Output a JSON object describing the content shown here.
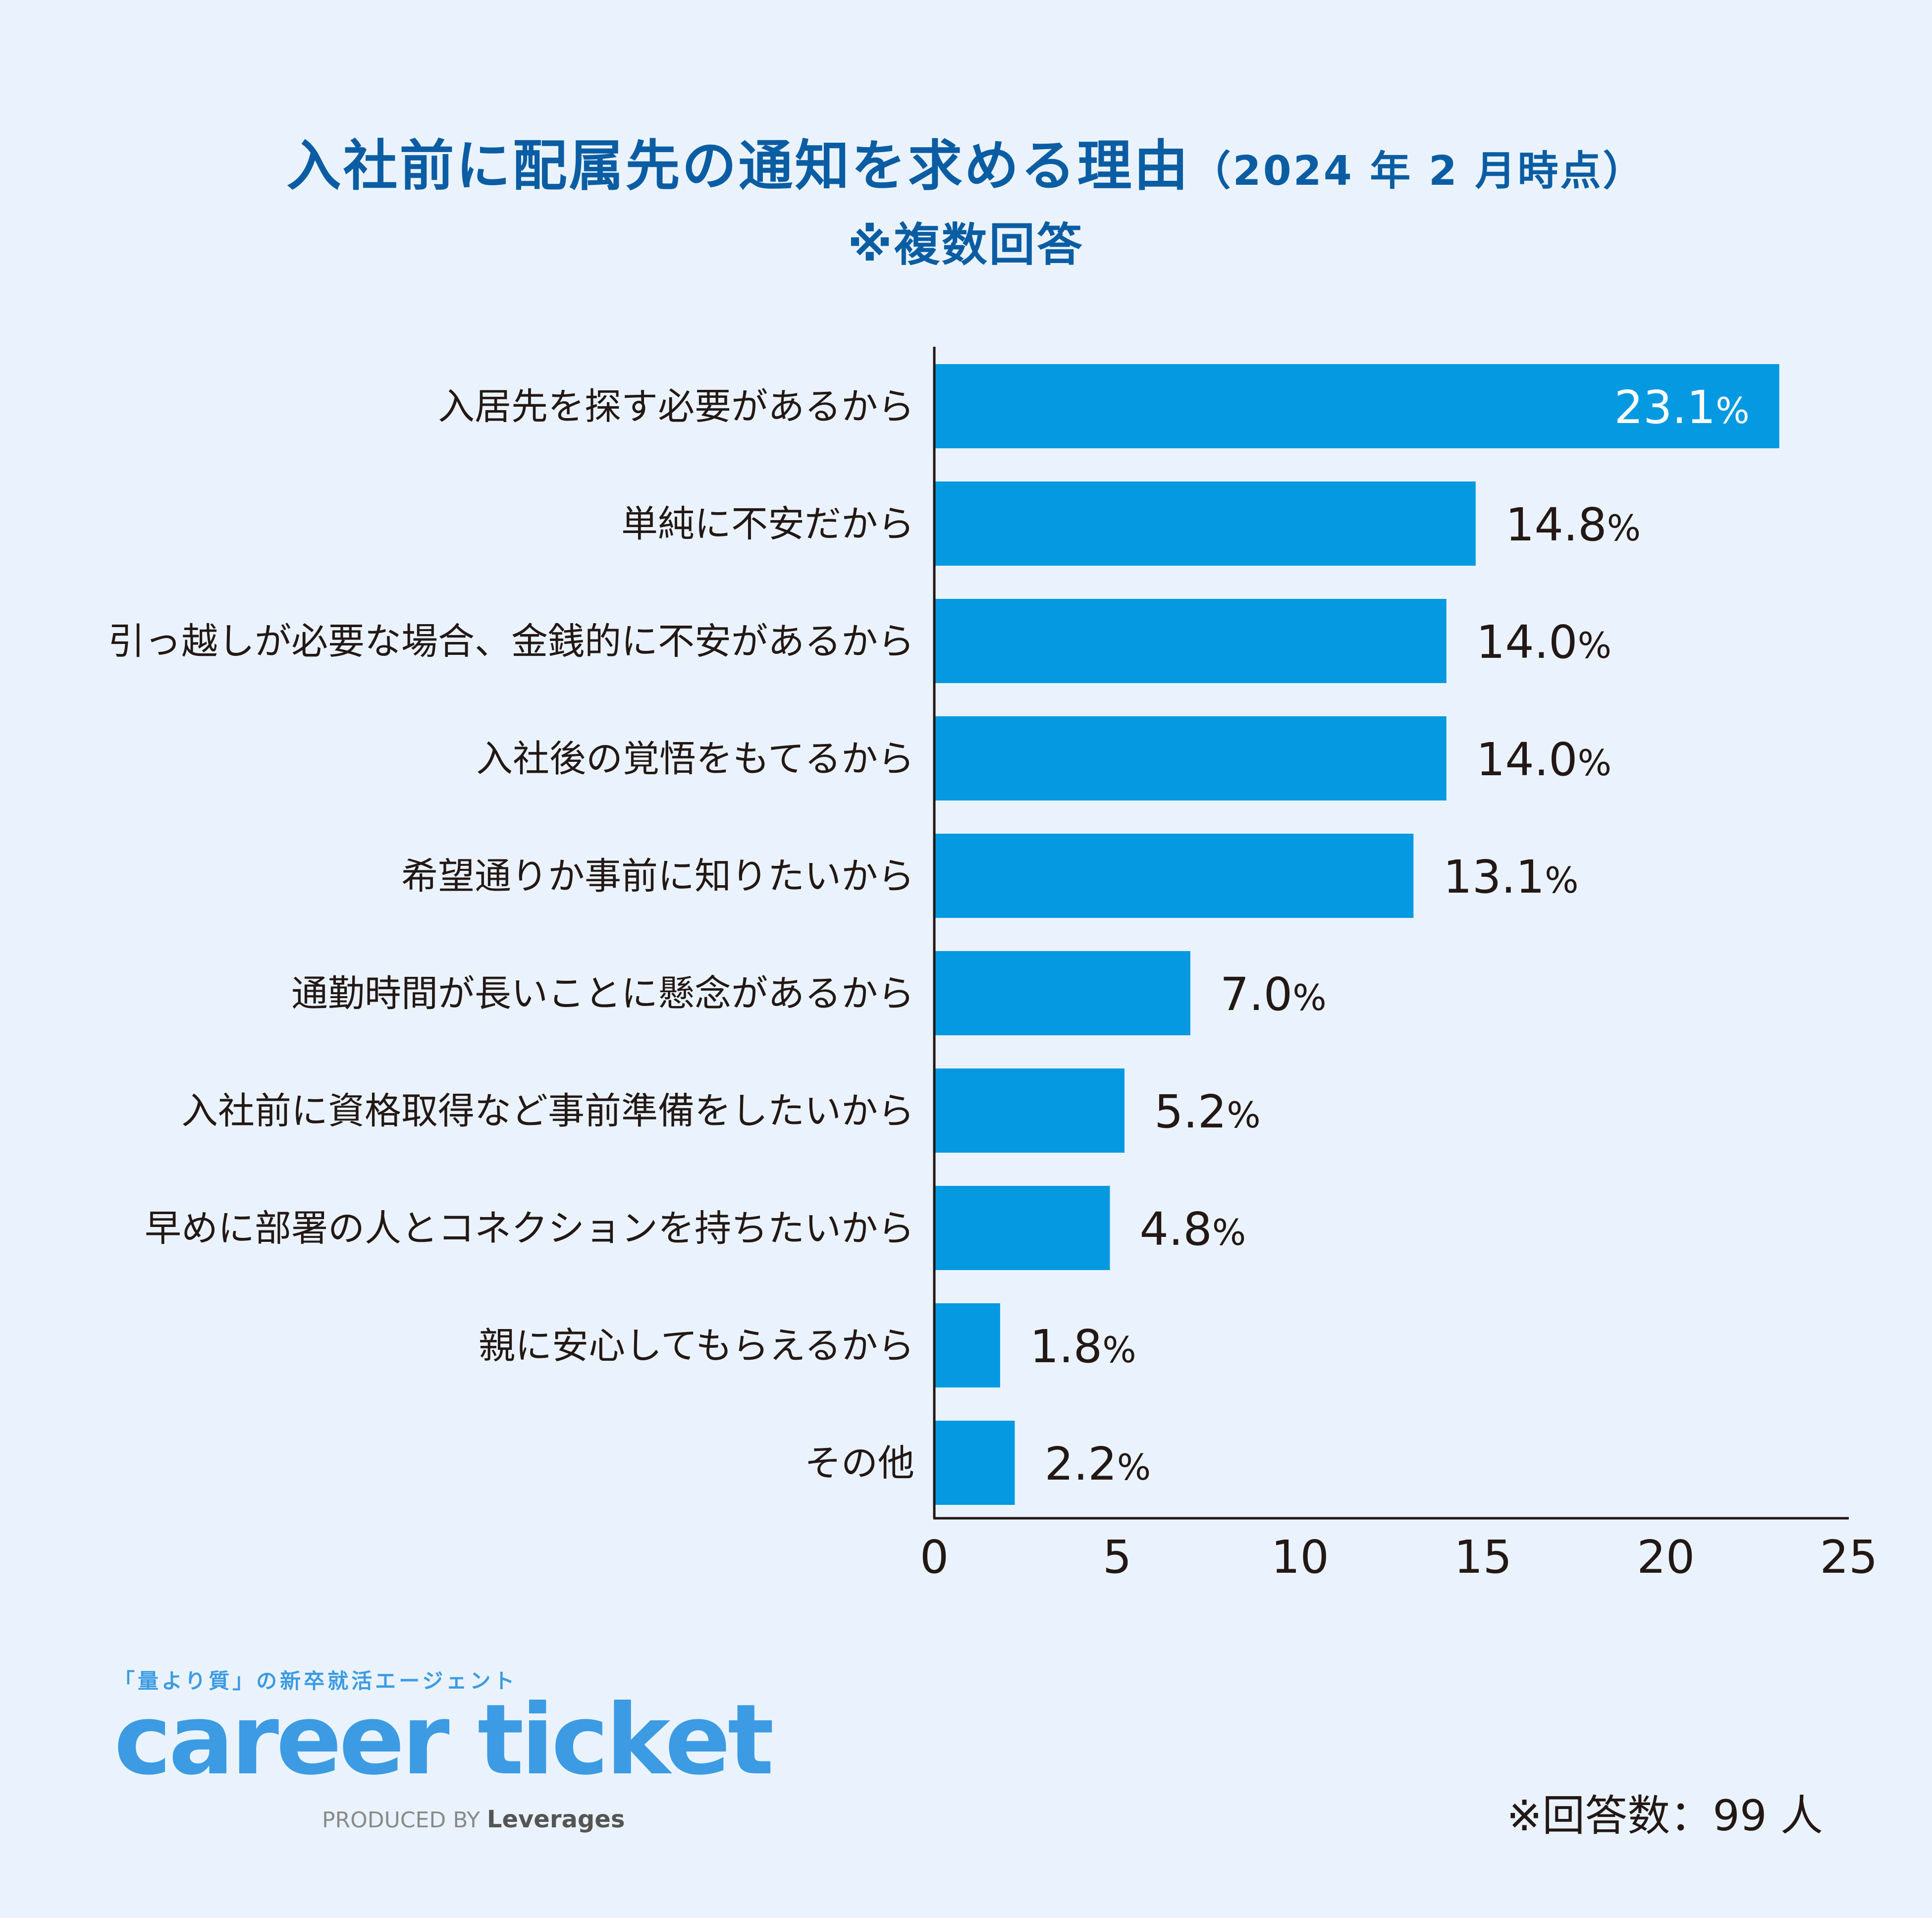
{
  "title": {
    "main": "入社前に配属先の通知を求める理由",
    "paren": "（2024 年 2 月時点）",
    "note": "※複数回答"
  },
  "chart_data": {
    "type": "bar",
    "orientation": "horizontal",
    "categories": [
      "入居先を探す必要があるから",
      "単純に不安だから",
      "引っ越しが必要な場合、金銭的に不安があるから",
      "入社後の覚悟をもてるから",
      "希望通りか事前に知りたいから",
      "通勤時間が長いことに懸念があるから",
      "入社前に資格取得など事前準備をしたいから",
      "早めに部署の人とコネクションを持ちたいから",
      "親に安心してもらえるから",
      "その他"
    ],
    "values": [
      23.1,
      14.8,
      14.0,
      14.0,
      13.1,
      7.0,
      5.2,
      4.8,
      1.8,
      2.2
    ],
    "value_labels": [
      "23.1",
      "14.8",
      "14.0",
      "14.0",
      "13.1",
      "7.0",
      "5.2",
      "4.8",
      "1.8",
      "2.2"
    ],
    "value_unit": "%",
    "xlim": [
      0,
      25
    ],
    "xticks": [
      "0",
      "5",
      "10",
      "15",
      "20",
      "25"
    ],
    "bar_color": "#0599e2",
    "label_color": "#231815",
    "inside_label_color": "#ffffff",
    "grid": false
  },
  "branding": {
    "tagline": "「量より質」の新卒就活エージェント",
    "logo": "career ticket",
    "produced_by": "PRODUCED BY",
    "company": "Leverages"
  },
  "footnote": "※回答数：99 人"
}
